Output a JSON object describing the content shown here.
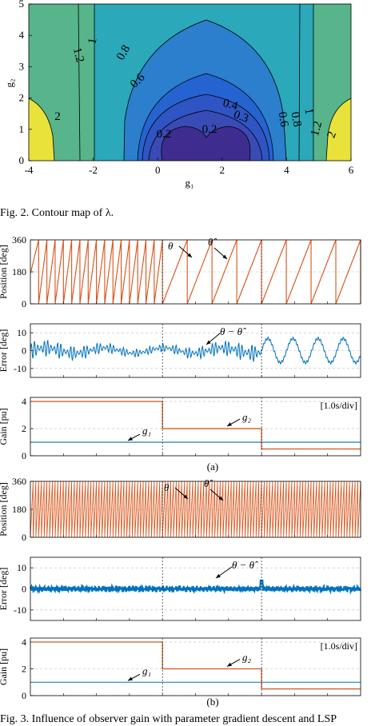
{
  "figure2": {
    "caption": "Fig. 2.    Contour map of λ.",
    "chart_data": {
      "type": "contour",
      "xlabel": "g₁",
      "ylabel": "g₂",
      "xlim": [
        -4,
        6
      ],
      "ylim": [
        0,
        5
      ],
      "xticks": [
        "-4",
        "-2",
        "0",
        "2",
        "4",
        "6"
      ],
      "yticks": [
        "0",
        "1",
        "2",
        "3",
        "4",
        "5"
      ],
      "contour_labels": [
        "2",
        "1.2",
        "1",
        "0.8",
        "0.6",
        "0.4",
        "0.3",
        "0.2",
        "0.2",
        "0.6",
        "0.8",
        "1",
        "1.2",
        "2"
      ],
      "colors": {
        "low": "#3c2a8c",
        "mid": "#1f9ec7",
        "high": "#f4e83a"
      }
    }
  },
  "figure3": {
    "caption": "Fig. 3.    Influence of observer gain with parameter gradient descent and LSP",
    "panels": [
      {
        "label": "(a)",
        "position": {
          "ylabel": "Position [deg]",
          "yticks": [
            "0",
            "180",
            "360"
          ],
          "ylim": [
            0,
            360
          ],
          "annotations": [
            "θ",
            "θ̂"
          ],
          "chart_data": {
            "type": "line",
            "series": [
              {
                "name": "θ",
                "color": "#d95319"
              },
              {
                "name": "θ̂",
                "color": "#d95319"
              }
            ],
            "teeth_before_step": 16,
            "teeth_after_step": 8
          }
        },
        "error": {
          "ylabel": "Error [deg]",
          "yticks": [
            "-10",
            "0",
            "10"
          ],
          "ylim": [
            -15,
            15
          ],
          "annotation": "θ − θ̂",
          "chart_data": {
            "type": "line",
            "series": [
              {
                "name": "θ − θ̂",
                "color": "#0072bd"
              }
            ],
            "amplitude_before": 5,
            "amplitude_after": 9
          }
        },
        "gain": {
          "ylabel": "Gain [pu]",
          "yticks": [
            "0",
            "2",
            "4"
          ],
          "ylim": [
            0,
            4.3
          ],
          "scale_note": "[1.0s/div]",
          "annotations": [
            "g₁",
            "g₂"
          ],
          "chart_data": {
            "type": "line",
            "series": [
              {
                "name": "g₁",
                "values": [
                  1,
                  1,
                  1
                ]
              },
              {
                "name": "g₂",
                "values": [
                  4,
                  2,
                  0.5
                ]
              }
            ]
          }
        }
      },
      {
        "label": "(b)",
        "position": {
          "ylabel": "Position [deg]",
          "yticks": [
            "0",
            "180",
            "360"
          ],
          "ylim": [
            0,
            360
          ],
          "annotations": [
            "θ",
            "θ̂"
          ],
          "chart_data": {
            "type": "line",
            "series": [
              {
                "name": "θ"
              },
              {
                "name": "θ̂"
              }
            ],
            "teeth_total": 120
          }
        },
        "error": {
          "ylabel": "Error [deg]",
          "yticks": [
            "-10",
            "0",
            "10"
          ],
          "ylim": [
            -15,
            15
          ],
          "annotation": "θ − θ̂",
          "chart_data": {
            "type": "line",
            "series": [
              {
                "name": "θ − θ̂"
              }
            ],
            "amplitude": 1.2,
            "spike_at_step": 4
          }
        },
        "gain": {
          "ylabel": "Gain [pu]",
          "yticks": [
            "0",
            "2",
            "4"
          ],
          "ylim": [
            0,
            4.3
          ],
          "scale_note": "[1.0s/div]",
          "annotations": [
            "g₁",
            "g₂"
          ],
          "chart_data": {
            "type": "line",
            "series": [
              {
                "name": "g₁",
                "values": [
                  1,
                  1,
                  1
                ]
              },
              {
                "name": "g₂",
                "values": [
                  4,
                  2,
                  0.5
                ]
              }
            ]
          }
        }
      }
    ]
  }
}
